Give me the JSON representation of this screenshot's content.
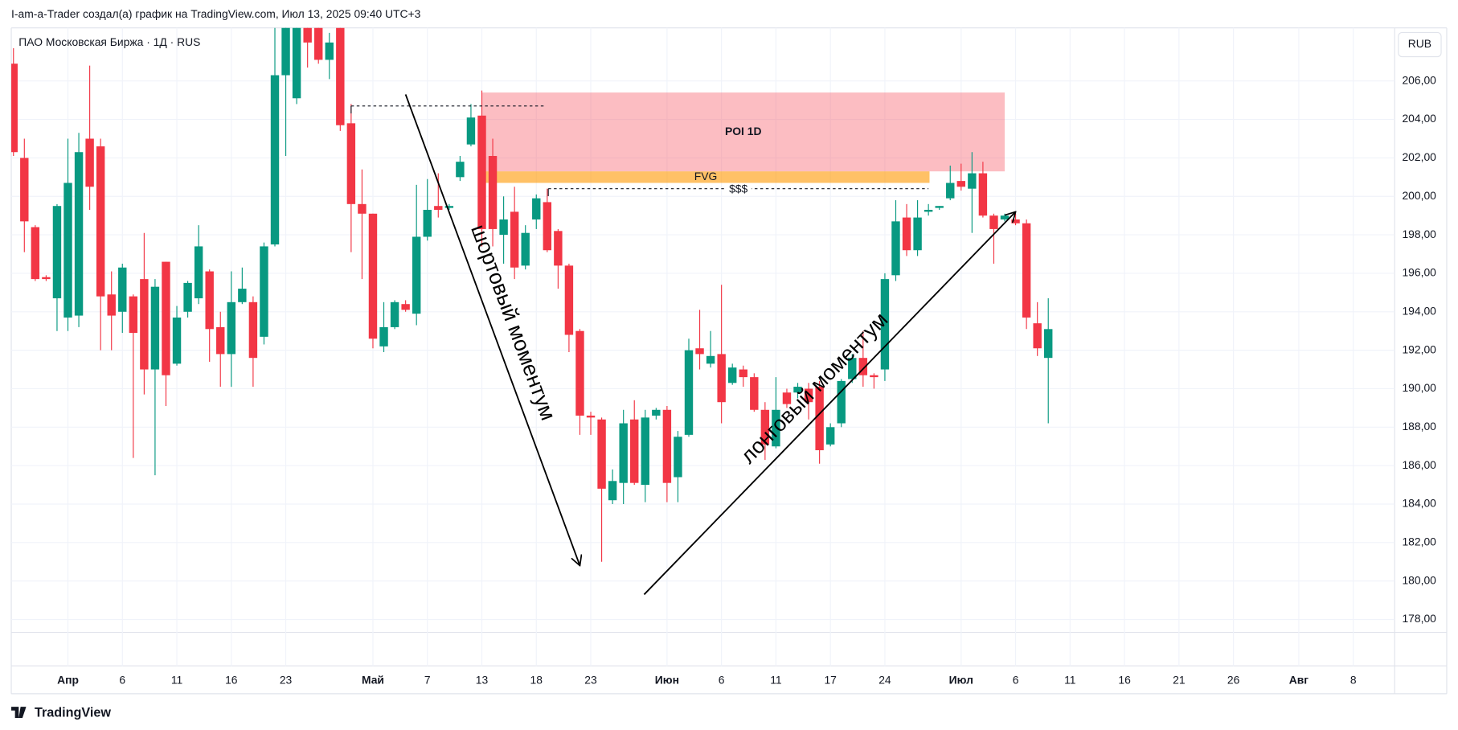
{
  "header": "I-am-a-Trader создал(а) график на TradingView.com, Июл 13, 2025 09:40 UTC+3",
  "chart_data": {
    "type": "candlestick",
    "legend": "ПАО Московская Биржа · 1Д · RUS",
    "currency": "RUB",
    "open": [
      206.9,
      202.0,
      198.4,
      195.8,
      194.7,
      193.7,
      193.8,
      203.0,
      202.6,
      194.9,
      194.0,
      194.8,
      195.7,
      191.0,
      196.6,
      191.3,
      194.0,
      194.7,
      196.1,
      193.2,
      191.8,
      194.5,
      194.5,
      192.7,
      197.5,
      206.3,
      205.1,
      208.9,
      208.8,
      207.1,
      208.8,
      203.8,
      199.6,
      199.1,
      192.2,
      193.2,
      194.4,
      193.9,
      197.9,
      199.5,
      199.4,
      201.0,
      202.7,
      204.2,
      202.1,
      198.0,
      199.2,
      196.4,
      198.8,
      199.7,
      198.2,
      196.4,
      193.0,
      188.6,
      188.4,
      184.2,
      185.1,
      188.4,
      185.0,
      188.6,
      188.9,
      185.4,
      187.6,
      192.1,
      191.3,
      191.8,
      190.3,
      191.0,
      190.6,
      188.9,
      187.0,
      189.8,
      189.8,
      190.0,
      190.1,
      187.1,
      188.2,
      190.5,
      191.6,
      190.7,
      191.0,
      195.9,
      198.9,
      197.2,
      199.2,
      199.4,
      199.9,
      200.8,
      200.4,
      201.2,
      199.0,
      198.8,
      198.8,
      198.6,
      193.4,
      191.6
    ],
    "high": [
      207.7,
      203.0,
      198.5,
      195.9,
      199.6,
      203.0,
      203.3,
      206.8,
      203.0,
      196.1,
      196.5,
      194.9,
      198.1,
      195.7,
      196.6,
      194.3,
      195.6,
      198.5,
      196.2,
      194.0,
      196.1,
      196.3,
      194.8,
      197.6,
      208.8,
      209.7,
      209.4,
      209.2,
      209.0,
      208.5,
      209.2,
      204.8,
      201.4,
      199.1,
      194.5,
      194.6,
      194.6,
      200.6,
      200.9,
      201.2,
      199.6,
      202.1,
      204.8,
      205.5,
      203.0,
      200.0,
      200.5,
      198.5,
      200.1,
      200.4,
      198.3,
      196.5,
      193.1,
      188.8,
      188.5,
      185.8,
      188.9,
      189.4,
      188.9,
      189.0,
      189.1,
      187.8,
      192.6,
      194.1,
      193.0,
      195.4,
      191.3,
      191.2,
      190.8,
      189.3,
      190.6,
      190.0,
      190.3,
      190.3,
      190.4,
      188.2,
      190.5,
      191.8,
      193.0,
      190.8,
      196.0,
      199.8,
      199.6,
      199.8,
      199.6,
      199.5,
      201.6,
      201.7,
      202.3,
      201.8,
      199.1,
      199.1,
      199.1,
      198.8,
      194.5,
      194.7
    ],
    "low": [
      202.1,
      197.1,
      195.6,
      195.6,
      193.0,
      193.0,
      193.2,
      199.3,
      192.0,
      192.0,
      192.9,
      186.4,
      189.7,
      185.5,
      189.1,
      191.2,
      193.7,
      194.4,
      191.4,
      190.1,
      190.1,
      194.4,
      190.1,
      192.3,
      197.4,
      202.1,
      204.8,
      206.7,
      206.9,
      206.1,
      203.4,
      197.1,
      195.7,
      192.1,
      191.9,
      193.1,
      194.0,
      193.3,
      197.7,
      198.9,
      199.3,
      200.8,
      202.6,
      197.4,
      197.4,
      196.5,
      195.7,
      196.2,
      198.3,
      197.1,
      195.2,
      191.9,
      187.6,
      187.6,
      181.0,
      184.0,
      184.0,
      185.0,
      184.1,
      188.4,
      184.1,
      184.1,
      187.5,
      191.0,
      191.1,
      188.2,
      190.2,
      190.1,
      188.8,
      186.3,
      186.9,
      189.0,
      189.5,
      188.4,
      186.1,
      187.0,
      188.0,
      190.3,
      190.1,
      190.0,
      190.4,
      195.6,
      196.9,
      196.9,
      199.0,
      199.3,
      199.8,
      200.3,
      198.1,
      198.9,
      196.5,
      198.7,
      198.5,
      193.1,
      191.7,
      188.2
    ],
    "close": [
      202.3,
      198.7,
      195.7,
      195.7,
      199.5,
      200.7,
      202.3,
      200.5,
      194.8,
      193.8,
      196.3,
      192.9,
      191.0,
      195.3,
      190.7,
      193.7,
      195.5,
      197.4,
      193.1,
      191.8,
      194.5,
      195.2,
      191.6,
      197.4,
      206.3,
      209.2,
      208.9,
      208.0,
      207.1,
      208.0,
      203.7,
      199.6,
      199.1,
      192.6,
      193.2,
      194.5,
      194.1,
      197.9,
      199.3,
      199.3,
      199.5,
      201.8,
      204.1,
      198.3,
      198.3,
      198.8,
      196.3,
      198.1,
      199.9,
      197.2,
      196.4,
      192.8,
      188.6,
      188.5,
      184.8,
      185.2,
      188.2,
      185.1,
      188.5,
      188.9,
      185.1,
      187.5,
      192.0,
      191.8,
      191.7,
      189.3,
      191.1,
      190.6,
      188.9,
      187.1,
      188.9,
      189.2,
      190.1,
      189.3,
      186.8,
      188.0,
      190.4,
      191.6,
      190.7,
      190.6,
      195.7,
      198.7,
      197.2,
      198.9,
      199.3,
      199.5,
      200.7,
      200.5,
      201.2,
      199.0,
      198.3,
      199.0,
      198.6,
      193.7,
      192.1,
      193.1
    ],
    "up_color": "#089981",
    "down_color": "#f23645",
    "xlim": [
      -0.2,
      126.8
    ],
    "ylim": [
      177.33,
      208.76
    ],
    "xticks": [
      {
        "value": 5,
        "label": "Апр"
      },
      {
        "value": 10,
        "label": "6"
      },
      {
        "value": 15,
        "label": "11"
      },
      {
        "value": 20,
        "label": "16"
      },
      {
        "value": 25,
        "label": "23"
      },
      {
        "value": 33,
        "label": "Май"
      },
      {
        "value": 38,
        "label": "7"
      },
      {
        "value": 43,
        "label": "13"
      },
      {
        "value": 48,
        "label": "18"
      },
      {
        "value": 53,
        "label": "23"
      },
      {
        "value": 60,
        "label": "Июн"
      },
      {
        "value": 65,
        "label": "6"
      },
      {
        "value": 70,
        "label": "11"
      },
      {
        "value": 75,
        "label": "17"
      },
      {
        "value": 80,
        "label": "24"
      },
      {
        "value": 87,
        "label": "Июл"
      },
      {
        "value": 92,
        "label": "6"
      },
      {
        "value": 97,
        "label": "11"
      },
      {
        "value": 102,
        "label": "16"
      },
      {
        "value": 107,
        "label": "21"
      },
      {
        "value": 112,
        "label": "26"
      },
      {
        "value": 118,
        "label": "Авг"
      },
      {
        "value": 123,
        "label": "8"
      }
    ],
    "yticks": [
      {
        "value": 178,
        "label": "178,00"
      },
      {
        "value": 180,
        "label": "180,00"
      },
      {
        "value": 182,
        "label": "182,00"
      },
      {
        "value": 184,
        "label": "184,00"
      },
      {
        "value": 186,
        "label": "186,00"
      },
      {
        "value": 188,
        "label": "188,00"
      },
      {
        "value": 190,
        "label": "190,00"
      },
      {
        "value": 192,
        "label": "192,00"
      },
      {
        "value": 194,
        "label": "194,00"
      },
      {
        "value": 196,
        "label": "196,00"
      },
      {
        "value": 198,
        "label": "198,00"
      },
      {
        "value": 200,
        "label": "200,00"
      },
      {
        "value": 202,
        "label": "202,00"
      },
      {
        "value": 204,
        "label": "204,00"
      },
      {
        "value": 206,
        "label": "206,00"
      }
    ],
    "grid": true,
    "zones": [
      {
        "label": "POI 1D",
        "x": [
          43,
          91
        ],
        "y": [
          201.3,
          205.4
        ],
        "color": "#f7525f"
      },
      {
        "label": "FVG",
        "x": [
          43,
          84.1
        ],
        "y": [
          200.7,
          201.3
        ],
        "color": "#ff9800"
      }
    ],
    "levels": [
      {
        "x": [
          31,
          48.9
        ],
        "y": 204.7
      },
      {
        "label": "$$$",
        "x": [
          49.1,
          84
        ],
        "y": 200.4
      }
    ],
    "arrows": [
      {
        "label": "шортовый моментум",
        "x": [
          36,
          52
        ],
        "y": [
          205.3,
          180.8
        ]
      },
      {
        "label": "лонговый моментум",
        "x": [
          57.9,
          92
        ],
        "y": [
          179.3,
          199.2
        ]
      }
    ]
  },
  "footer": "TradingView"
}
